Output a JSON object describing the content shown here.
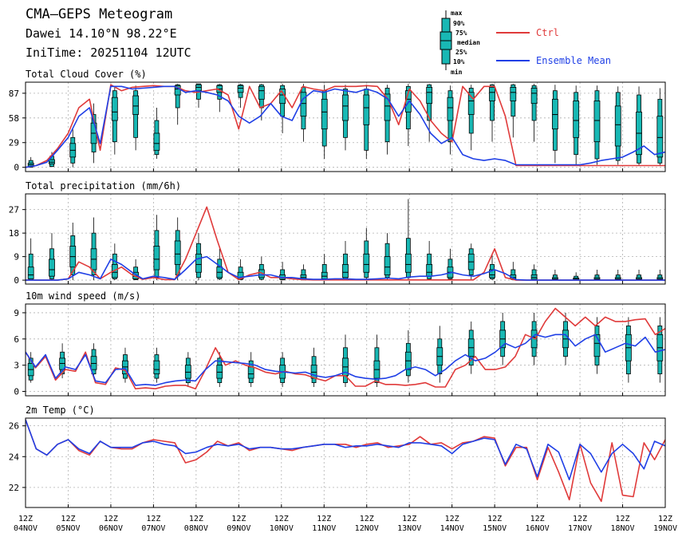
{
  "header": {
    "title": "CMA—GEPS Meteogram",
    "location": "Dawei 14.10°N 98.22°E",
    "init_time": "IniTime: 20251104 12UTC"
  },
  "legend": {
    "box_labels": [
      "max",
      "90%",
      "75%",
      "median",
      "25%",
      "10%",
      "min"
    ],
    "ctrl_label": "Ctrl",
    "mean_label": "Ensemble Mean"
  },
  "colors": {
    "ctrl": "#e03a3a",
    "mean": "#1f3fe6",
    "box_fill": "#18b8b4",
    "box_edge": "#000000",
    "grid": "#b0b0b0"
  },
  "x_ticks": [
    {
      "top": "12Z",
      "bottom": "04NOV"
    },
    {
      "top": "12Z",
      "bottom": "05NOV"
    },
    {
      "top": "12Z",
      "bottom": "06NOV"
    },
    {
      "top": "12Z",
      "bottom": "07NOV"
    },
    {
      "top": "12Z",
      "bottom": "08NOV"
    },
    {
      "top": "12Z",
      "bottom": "09NOV"
    },
    {
      "top": "12Z",
      "bottom": "10NOV"
    },
    {
      "top": "12Z",
      "bottom": "11NOV"
    },
    {
      "top": "12Z",
      "bottom": "12NOV"
    },
    {
      "top": "12Z",
      "bottom": "13NOV"
    },
    {
      "top": "12Z",
      "bottom": "14NOV"
    },
    {
      "top": "12Z",
      "bottom": "15NOV"
    },
    {
      "top": "12Z",
      "bottom": "16NOV"
    },
    {
      "top": "12Z",
      "bottom": "17NOV"
    },
    {
      "top": "12Z",
      "bottom": "18NOV"
    },
    {
      "top": "12Z",
      "bottom": "19NOV"
    }
  ],
  "chart_data": [
    {
      "type": "box",
      "title": "Total Cloud Cover (%)",
      "yticks": [
        0,
        29,
        58,
        87
      ],
      "ylim": [
        -5,
        100
      ],
      "x_unit": "days since 04NOV 12Z (6-hourly)",
      "mean": [
        0,
        2,
        6,
        20,
        35,
        60,
        70,
        28,
        95,
        95,
        92,
        93,
        94,
        95,
        95,
        88,
        90,
        88,
        85,
        78,
        60,
        52,
        60,
        75,
        60,
        55,
        80,
        90,
        88,
        92,
        90,
        88,
        92,
        88,
        80,
        60,
        78,
        62,
        40,
        28,
        35,
        15,
        10,
        8,
        10,
        8,
        3,
        3,
        3,
        3,
        3,
        3,
        3,
        5,
        8,
        10,
        12,
        18,
        25,
        15,
        18
      ],
      "ctrl": [
        0,
        2,
        8,
        22,
        40,
        70,
        80,
        20,
        97,
        90,
        94,
        95,
        96,
        95,
        95,
        90,
        88,
        90,
        92,
        85,
        45,
        95,
        70,
        75,
        90,
        70,
        95,
        92,
        90,
        95,
        95,
        95,
        96,
        95,
        80,
        50,
        92,
        78,
        55,
        40,
        30,
        95,
        80,
        95,
        95,
        60,
        2,
        2,
        2,
        2,
        2,
        2,
        2,
        2,
        2,
        2,
        2,
        2,
        2,
        2,
        2
      ],
      "boxes": [
        [
          0,
          0,
          1,
          3,
          5,
          8,
          12
        ],
        [
          0,
          1,
          4,
          6,
          9,
          13,
          18
        ],
        [
          0,
          5,
          12,
          20,
          28,
          35,
          45
        ],
        [
          5,
          18,
          28,
          40,
          52,
          62,
          75
        ],
        [
          15,
          30,
          55,
          65,
          82,
          90,
          95
        ],
        [
          20,
          35,
          62,
          72,
          84,
          90,
          96
        ],
        [
          10,
          15,
          20,
          28,
          40,
          55,
          70
        ],
        [
          50,
          70,
          85,
          92,
          96,
          97,
          98
        ],
        [
          70,
          80,
          90,
          94,
          97,
          98,
          98
        ],
        [
          65,
          80,
          88,
          92,
          96,
          97,
          98
        ],
        [
          70,
          82,
          88,
          93,
          96,
          97,
          98
        ],
        [
          55,
          70,
          80,
          90,
          95,
          97,
          98
        ],
        [
          40,
          60,
          75,
          85,
          92,
          96,
          98
        ],
        [
          30,
          45,
          60,
          75,
          88,
          94,
          98
        ],
        [
          10,
          25,
          45,
          65,
          80,
          90,
          97
        ],
        [
          20,
          35,
          55,
          72,
          85,
          92,
          97
        ],
        [
          10,
          20,
          50,
          70,
          85,
          92,
          97
        ],
        [
          15,
          30,
          55,
          72,
          86,
          93,
          97
        ],
        [
          25,
          45,
          65,
          80,
          90,
          95,
          98
        ],
        [
          30,
          55,
          75,
          88,
          94,
          97,
          98
        ],
        [
          15,
          30,
          55,
          70,
          82,
          90,
          96
        ],
        [
          20,
          40,
          62,
          78,
          88,
          93,
          97
        ],
        [
          30,
          55,
          78,
          88,
          94,
          97,
          98
        ],
        [
          35,
          60,
          78,
          88,
          94,
          97,
          98
        ],
        [
          30,
          55,
          75,
          87,
          93,
          96,
          98
        ],
        [
          5,
          20,
          45,
          62,
          80,
          90,
          97
        ],
        [
          3,
          15,
          35,
          55,
          78,
          88,
          96
        ],
        [
          3,
          10,
          30,
          55,
          78,
          90,
          96
        ],
        [
          3,
          8,
          25,
          50,
          72,
          88,
          95
        ],
        [
          2,
          5,
          15,
          40,
          65,
          85,
          95
        ],
        [
          2,
          5,
          12,
          35,
          60,
          80,
          93
        ]
      ]
    },
    {
      "type": "box",
      "title": "Total precipitation (mm/6h)",
      "yticks": [
        0,
        9,
        18,
        27
      ],
      "ylim": [
        -1.5,
        33
      ],
      "x_unit": "days since 04NOV 12Z (6-hourly)",
      "mean": [
        0,
        0,
        0,
        0,
        0.5,
        3,
        2,
        0.5,
        8,
        6,
        3,
        0.5,
        1.5,
        1,
        0.3,
        4,
        8,
        9,
        6,
        3,
        1,
        1.5,
        2,
        2,
        1,
        1,
        0.5,
        0.3,
        0.3,
        0.5,
        0.5,
        0.3,
        0.3,
        0.5,
        0.8,
        0.5,
        1.2,
        1.5,
        1.5,
        2,
        3,
        2,
        1.5,
        2.5,
        4,
        2.5,
        0.2,
        0,
        0,
        0,
        0,
        0,
        0,
        0,
        0,
        0,
        0,
        0,
        0,
        0,
        0
      ],
      "ctrl": [
        0,
        0,
        0,
        0,
        0.5,
        7,
        5,
        0.5,
        3,
        5,
        2,
        0.3,
        1,
        0.2,
        0.2,
        8,
        18,
        28,
        15,
        3,
        0.2,
        2,
        3,
        1,
        1,
        0.5,
        0.2,
        0.1,
        0.1,
        0.1,
        0.1,
        0.1,
        0.1,
        0.1,
        0.1,
        0.1,
        0.1,
        0.1,
        0.1,
        0.1,
        0.1,
        0.1,
        0.1,
        3,
        12,
        1,
        0,
        0,
        0,
        0,
        0,
        0,
        0,
        0,
        0,
        0,
        0,
        0,
        0,
        0,
        0
      ],
      "boxes": [
        [
          0,
          0,
          0.5,
          2,
          5,
          10,
          16
        ],
        [
          0,
          0.5,
          1.5,
          4,
          8,
          12,
          18
        ],
        [
          0,
          2,
          5,
          9,
          13,
          17,
          22
        ],
        [
          0,
          2,
          4,
          8,
          12,
          18,
          24
        ],
        [
          0,
          0.5,
          1,
          3,
          6,
          10,
          14
        ],
        [
          0,
          0.2,
          0.5,
          1.5,
          3,
          5,
          8
        ],
        [
          0,
          1,
          4,
          8,
          13,
          19,
          25
        ],
        [
          0,
          2,
          6,
          10,
          15,
          19,
          24
        ],
        [
          0,
          1,
          3,
          6,
          10,
          14,
          18
        ],
        [
          0,
          0.5,
          1,
          3,
          5,
          8,
          12
        ],
        [
          0,
          0.2,
          0.5,
          1,
          3,
          5,
          8
        ],
        [
          0,
          0.3,
          1,
          2,
          4,
          6,
          9
        ],
        [
          0,
          0.1,
          0.3,
          1,
          2,
          4,
          7
        ],
        [
          0,
          0.1,
          0.3,
          1,
          2,
          4,
          6
        ],
        [
          0,
          0.2,
          0.5,
          1.5,
          3,
          6,
          10
        ],
        [
          0,
          0.5,
          1,
          3,
          6,
          10,
          15
        ],
        [
          0,
          1,
          3,
          6,
          10,
          15,
          20
        ],
        [
          0,
          1,
          2,
          5,
          9,
          14,
          18
        ],
        [
          0,
          1,
          3,
          6,
          10,
          16,
          31
        ],
        [
          0,
          0.5,
          1.5,
          3,
          6,
          10,
          15
        ],
        [
          0,
          0.5,
          1,
          3,
          5,
          8,
          12
        ],
        [
          0,
          2,
          4,
          7,
          10,
          12,
          14
        ],
        [
          0,
          0.5,
          1,
          2,
          4,
          6,
          10
        ],
        [
          0,
          0.2,
          0.5,
          1,
          2,
          4,
          7
        ],
        [
          0,
          0.1,
          0.3,
          1,
          2,
          4,
          6
        ],
        [
          0,
          0.1,
          0.2,
          0.5,
          1,
          2,
          4
        ],
        [
          0,
          0.1,
          0.2,
          0.4,
          0.8,
          1.5,
          3
        ],
        [
          0,
          0.1,
          0.2,
          0.5,
          1,
          2,
          4
        ],
        [
          0,
          0.1,
          0.2,
          0.5,
          1,
          2,
          4
        ],
        [
          0,
          0.1,
          0.2,
          0.5,
          1,
          2,
          4
        ],
        [
          0,
          0.1,
          0.2,
          0.5,
          1,
          2,
          4
        ]
      ]
    },
    {
      "type": "box",
      "title": "10m wind speed (m/s)",
      "yticks": [
        0,
        3,
        6,
        9
      ],
      "ylim": [
        -0.5,
        10
      ],
      "x_unit": "days since 04NOV 12Z (6-hourly)",
      "mean": [
        4.5,
        2.8,
        4.2,
        1.5,
        2.8,
        2.5,
        4.2,
        1.2,
        1,
        2.5,
        2.6,
        0.7,
        0.8,
        0.7,
        1,
        1.2,
        1.3,
        1.2,
        2.5,
        3.5,
        3.4,
        3.3,
        3.2,
        3,
        2.5,
        2.3,
        2.2,
        2.1,
        2.2,
        1.8,
        1.6,
        1.8,
        2.2,
        1.7,
        1.5,
        1.4,
        1.5,
        1.8,
        2.5,
        2.8,
        2.5,
        1.8,
        2.5,
        3.5,
        4.2,
        3.5,
        3.8,
        4.5,
        5.5,
        5,
        5.5,
        6.5,
        6.2,
        6.5,
        6.5,
        5.2,
        6,
        6.5,
        4.5,
        5,
        5.5,
        5.2,
        6.2,
        4.5,
        4.8
      ],
      "ctrl": [
        4.5,
        2.7,
        4,
        1.3,
        2.5,
        2.3,
        4.5,
        1,
        0.8,
        2.7,
        2.4,
        0.3,
        0.4,
        0.3,
        0.6,
        0.7,
        0.7,
        0.3,
        2.5,
        5,
        3,
        3.5,
        3,
        2.7,
        2.2,
        2,
        2.3,
        2,
        1.9,
        1.5,
        1.2,
        1.8,
        1.8,
        0.6,
        0.6,
        1.2,
        0.8,
        0.8,
        0.7,
        0.8,
        1,
        0.5,
        0.5,
        2.5,
        3,
        4,
        2.5,
        2.5,
        2.8,
        4,
        6.5,
        6,
        8,
        9.5,
        8.5,
        7.5,
        8.5,
        7.5,
        8.5,
        8,
        8,
        8.2,
        8.3,
        6.5,
        7.2
      ],
      "boxes": [
        [
          1,
          1.3,
          1.8,
          2.5,
          3.2,
          3.8,
          4.5
        ],
        [
          1.5,
          2,
          2.5,
          3.2,
          3.8,
          4.5,
          5.5
        ],
        [
          1.5,
          2,
          2.5,
          3.2,
          4,
          4.8,
          5.5
        ],
        [
          1,
          1.5,
          2,
          2.8,
          3.5,
          4.2,
          5
        ],
        [
          1,
          1.5,
          2,
          2.5,
          3.5,
          4.2,
          5
        ],
        [
          0.5,
          1,
          1.5,
          2.2,
          3,
          3.8,
          4.5
        ],
        [
          0.5,
          1,
          1.5,
          2.2,
          3,
          3.8,
          4.5
        ],
        [
          0.5,
          1,
          1.5,
          2,
          2.8,
          3.5,
          4.5
        ],
        [
          0.5,
          1,
          1.5,
          2.2,
          3,
          3.8,
          4.5
        ],
        [
          0.5,
          1,
          1.5,
          2.2,
          3,
          4,
          5
        ],
        [
          0.5,
          1,
          1.8,
          2.8,
          3.8,
          5,
          6.5
        ],
        [
          0.5,
          1,
          1.5,
          2.5,
          3.5,
          5,
          6.5
        ],
        [
          1,
          1.8,
          2.5,
          3.5,
          4.5,
          5.5,
          7
        ],
        [
          1,
          2,
          3,
          4,
          5,
          6,
          7.5
        ],
        [
          2,
          3,
          4,
          5,
          6,
          7,
          8
        ],
        [
          3,
          4,
          5,
          6,
          7,
          8,
          9
        ],
        [
          3,
          4,
          5,
          6.2,
          7,
          8,
          9
        ],
        [
          3,
          4,
          5,
          6,
          7,
          8,
          9
        ],
        [
          2,
          3,
          4,
          5.5,
          6.5,
          7.5,
          8.5
        ],
        [
          1,
          2,
          3.5,
          5,
          6.5,
          7.5,
          8.5
        ],
        [
          1,
          2,
          3.5,
          5,
          6.5,
          7.5,
          8.5
        ]
      ]
    },
    {
      "type": "box",
      "title": "2m Temp (°C)",
      "yticks": [
        22,
        24,
        26
      ],
      "ylim": [
        20.7,
        26.5
      ],
      "x_unit": "days since 04NOV 12Z (6-hourly)",
      "mean": [
        26.4,
        24.5,
        24.1,
        24.8,
        25.1,
        24.5,
        24.2,
        25,
        24.6,
        24.6,
        24.6,
        24.9,
        25,
        24.8,
        24.7,
        24.2,
        24.3,
        24.6,
        24.8,
        24.7,
        24.8,
        24.5,
        24.6,
        24.6,
        24.5,
        24.5,
        24.6,
        24.7,
        24.8,
        24.8,
        24.6,
        24.7,
        24.7,
        24.8,
        24.7,
        24.6,
        24.9,
        24.9,
        24.8,
        24.7,
        24.2,
        24.8,
        25,
        25.2,
        25.1,
        23.5,
        24.8,
        24.5,
        22.7,
        24.8,
        24.3,
        22.5,
        24.8,
        24.2,
        23,
        24.2,
        24.8,
        24.2,
        23.2,
        25,
        24.7
      ],
      "ctrl": [
        26.4,
        24.5,
        24.1,
        24.8,
        25.1,
        24.4,
        24.1,
        25,
        24.6,
        24.5,
        24.5,
        24.9,
        25.1,
        25,
        24.9,
        23.6,
        23.8,
        24.3,
        25,
        24.7,
        24.9,
        24.4,
        24.6,
        24.6,
        24.5,
        24.4,
        24.6,
        24.7,
        24.8,
        24.8,
        24.8,
        24.6,
        24.8,
        24.9,
        24.6,
        24.7,
        24.8,
        25.3,
        24.8,
        24.9,
        24.5,
        24.9,
        25,
        25.3,
        25.2,
        23.4,
        24.6,
        24.6,
        22.5,
        24.6,
        23,
        21.2,
        24.8,
        22.3,
        21.1,
        24.9,
        21.5,
        21.4,
        24.9,
        23.8,
        25.1
      ]
    }
  ]
}
